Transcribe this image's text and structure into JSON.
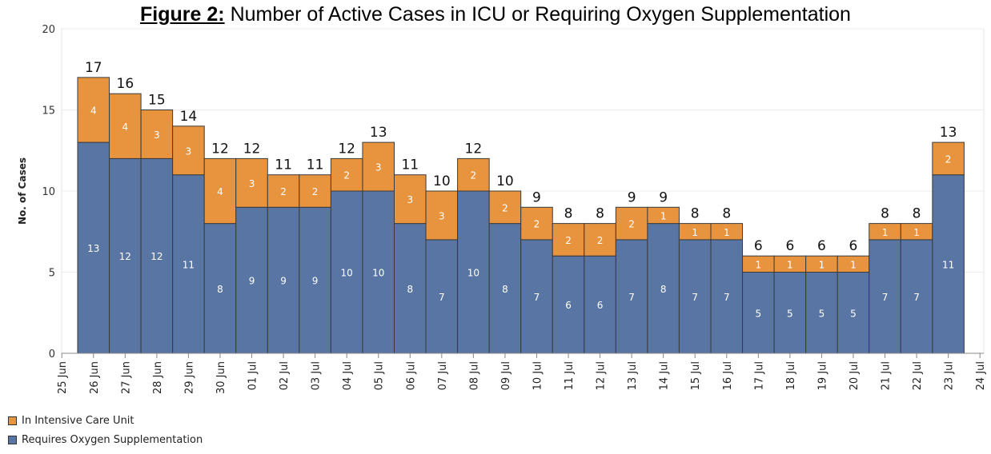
{
  "chart_data": {
    "type": "bar",
    "stacked": true,
    "title_prefix": "Figure 2:",
    "title": "Number of Active Cases in ICU or Requiring Oxygen Supplementation",
    "ylabel": "No. of Cases",
    "xlabel": "",
    "ylim": [
      0,
      20
    ],
    "yticks": [
      0,
      5,
      10,
      15,
      20
    ],
    "x_tick_labels": [
      "25 Jun",
      "26 Jun",
      "27 Jun",
      "28 Jun",
      "29 Jun",
      "30 Jun",
      "01 Jul",
      "02 Jul",
      "03 Jul",
      "04 Jul",
      "05 Jul",
      "06 Jul",
      "07 Jul",
      "08 Jul",
      "09 Jul",
      "10 Jul",
      "11 Jul",
      "12 Jul",
      "13 Jul",
      "14 Jul",
      "15 Jul",
      "16 Jul",
      "17 Jul",
      "18 Jul",
      "19 Jul",
      "20 Jul",
      "21 Jul",
      "22 Jul",
      "23 Jul",
      "24 Jul"
    ],
    "categories": [
      "26 Jun",
      "27 Jun",
      "28 Jun",
      "29 Jun",
      "30 Jun",
      "01 Jul",
      "02 Jul",
      "03 Jul",
      "04 Jul",
      "05 Jul",
      "06 Jul",
      "07 Jul",
      "08 Jul",
      "09 Jul",
      "10 Jul",
      "11 Jul",
      "12 Jul",
      "13 Jul",
      "14 Jul",
      "15 Jul",
      "16 Jul",
      "17 Jul",
      "18 Jul",
      "19 Jul",
      "20 Jul",
      "21 Jul",
      "22 Jul",
      "23 Jul"
    ],
    "series": [
      {
        "name": "Requires Oxygen Supplementation",
        "color": "#5875a4",
        "values": [
          13,
          12,
          12,
          11,
          8,
          9,
          9,
          9,
          10,
          10,
          8,
          7,
          10,
          8,
          7,
          6,
          6,
          7,
          8,
          7,
          7,
          5,
          5,
          5,
          5,
          7,
          7,
          11
        ]
      },
      {
        "name": "In Intensive Care Unit",
        "color": "#e8943f",
        "values": [
          4,
          4,
          3,
          3,
          4,
          3,
          2,
          2,
          2,
          3,
          3,
          3,
          2,
          2,
          2,
          2,
          2,
          2,
          1,
          1,
          1,
          1,
          1,
          1,
          1,
          1,
          1,
          2
        ]
      }
    ],
    "totals": [
      17,
      16,
      15,
      14,
      12,
      12,
      11,
      11,
      12,
      13,
      11,
      10,
      12,
      10,
      9,
      8,
      8,
      9,
      9,
      8,
      8,
      6,
      6,
      6,
      6,
      8,
      8,
      13
    ],
    "legend": {
      "position": "bottom-left",
      "items": [
        {
          "label": "In Intensive Care Unit",
          "color": "#e8943f"
        },
        {
          "label": "Requires Oxygen Supplementation",
          "color": "#5875a4"
        }
      ]
    },
    "grid": true
  }
}
